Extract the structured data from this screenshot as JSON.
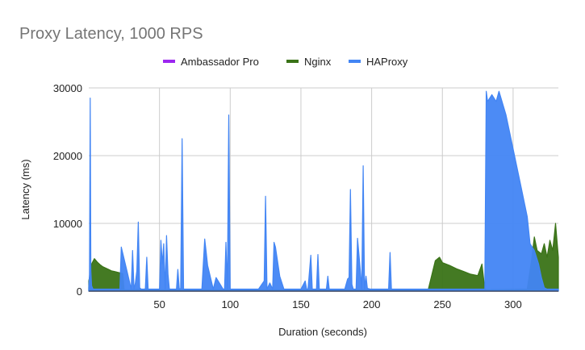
{
  "chart_data": {
    "type": "area",
    "title": "Proxy Latency, 1000 RPS",
    "xlabel": "Duration (seconds)",
    "ylabel": "Latency (ms)",
    "xlim": [
      0,
      332
    ],
    "ylim": [
      0,
      30000
    ],
    "x_ticks": [
      50,
      100,
      150,
      200,
      250,
      300
    ],
    "y_ticks": [
      0,
      10000,
      20000,
      30000
    ],
    "grid": true,
    "legend_position": "top-center",
    "series": [
      {
        "name": "Ambassador Pro",
        "color": "#9c27f0",
        "x": [
          0,
          100,
          200,
          300,
          310,
          315,
          320,
          332
        ],
        "y": [
          50,
          50,
          50,
          50,
          50,
          200,
          150,
          50
        ]
      },
      {
        "name": "Nginx",
        "color": "#3a7317",
        "x": [
          0,
          1,
          2,
          4,
          6,
          8,
          10,
          12,
          14,
          16,
          18,
          20,
          22,
          24,
          25,
          30,
          40,
          50,
          100,
          150,
          200,
          240,
          245,
          248,
          250,
          255,
          260,
          265,
          270,
          275,
          278,
          280,
          281,
          282,
          310,
          313,
          315,
          317,
          320,
          322,
          324,
          326,
          328,
          330,
          332
        ],
        "y": [
          1500,
          2500,
          4000,
          4800,
          4300,
          3900,
          3600,
          3400,
          3200,
          3000,
          2900,
          2800,
          2700,
          2600,
          200,
          200,
          300,
          200,
          200,
          200,
          200,
          200,
          4500,
          5000,
          4200,
          3800,
          3300,
          2900,
          2500,
          2300,
          4000,
          300,
          200,
          200,
          300,
          4500,
          8000,
          6000,
          5500,
          7000,
          5000,
          7500,
          6000,
          10000,
          5000
        ]
      },
      {
        "name": "HAProxy",
        "color": "#4285f4",
        "x": [
          0,
          0.5,
          1,
          1.5,
          2,
          3,
          5,
          15,
          22,
          23,
          27,
          30,
          31,
          32,
          33,
          34,
          35,
          36,
          37,
          38,
          40,
          41,
          42,
          45,
          50,
          51,
          52,
          53,
          54,
          55,
          56,
          57,
          60,
          62,
          63,
          64,
          65,
          66,
          67,
          70,
          80,
          82,
          83,
          84,
          88,
          90,
          95,
          96,
          97,
          98,
          99,
          100,
          101,
          105,
          120,
          124,
          125,
          126,
          128,
          130,
          131,
          132,
          135,
          138,
          140,
          150,
          153,
          154,
          155,
          157,
          158,
          159,
          161,
          162,
          163,
          165,
          168,
          169,
          170,
          175,
          181,
          183,
          184,
          185,
          186,
          187,
          189,
          190,
          192,
          193,
          194,
          195,
          196,
          197,
          199,
          200,
          205,
          212,
          213,
          214,
          215,
          216,
          220,
          230,
          240,
          250,
          260,
          270,
          275,
          280,
          281,
          282,
          285,
          288,
          290,
          295,
          300,
          305,
          310,
          312,
          315,
          318,
          320,
          322,
          324,
          326,
          328,
          330,
          332
        ],
        "y": [
          500,
          2500,
          28500,
          3000,
          800,
          300,
          300,
          300,
          300,
          6500,
          3000,
          300,
          6000,
          300,
          1200,
          3000,
          10200,
          500,
          300,
          300,
          300,
          5000,
          300,
          300,
          300,
          7500,
          4000,
          7000,
          300,
          8200,
          2500,
          300,
          300,
          300,
          3200,
          300,
          400,
          22500,
          300,
          300,
          300,
          7700,
          5800,
          3800,
          300,
          2000,
          300,
          300,
          7200,
          300,
          26000,
          300,
          300,
          300,
          300,
          1500,
          14000,
          300,
          1200,
          300,
          7200,
          6500,
          2200,
          300,
          300,
          300,
          1500,
          300,
          300,
          5300,
          300,
          300,
          300,
          5400,
          300,
          300,
          300,
          2200,
          300,
          300,
          300,
          1800,
          2000,
          15000,
          1000,
          300,
          300,
          7800,
          3000,
          300,
          18500,
          300,
          2200,
          400,
          300,
          300,
          300,
          300,
          5700,
          300,
          300,
          300,
          300,
          300,
          300,
          300,
          300,
          300,
          300,
          300,
          29500,
          28000,
          29000,
          28000,
          29500,
          26000,
          21000,
          16000,
          11000,
          7000,
          6000,
          4000,
          2000,
          500,
          300,
          300,
          300,
          300,
          300
        ]
      }
    ]
  }
}
